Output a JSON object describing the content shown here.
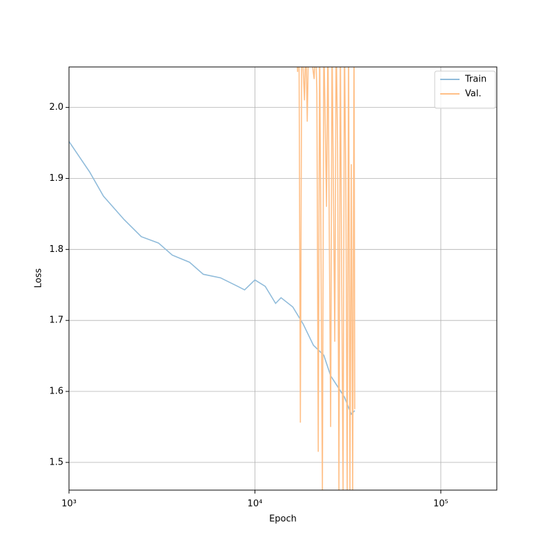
{
  "chart_data": {
    "type": "line",
    "xlabel": "Epoch",
    "ylabel": "Loss",
    "xscale": "log",
    "grid": true,
    "legend": "upper right",
    "xlim": [
      1000,
      200000
    ],
    "xticks": [
      {
        "value": 1000,
        "label": "10³"
      },
      {
        "value": 10000,
        "label": "10⁴"
      },
      {
        "value": 100000,
        "label": "10⁵"
      }
    ],
    "ylim": [
      1.461,
      2.057
    ],
    "yticks": [
      {
        "value": 1.5,
        "label": "1.5"
      },
      {
        "value": 1.6,
        "label": "1.6"
      },
      {
        "value": 1.7,
        "label": "1.7"
      },
      {
        "value": 1.8,
        "label": "1.8"
      },
      {
        "value": 1.9,
        "label": "1.9"
      },
      {
        "value": 2.0,
        "label": "2.0"
      }
    ],
    "series": [
      {
        "name": "Train",
        "color": "#8fbbda",
        "x": [
          1000,
          1292,
          1532,
          1979,
          2448,
          3030,
          3594,
          4448,
          5275,
          6527,
          8080,
          8800,
          10000,
          11360,
          12920,
          13820,
          15980,
          18170,
          20640,
          23470,
          25550,
          27830,
          30300,
          33000,
          34440
        ],
        "values": [
          1.952,
          1.909,
          1.875,
          1.842,
          1.818,
          1.809,
          1.792,
          1.782,
          1.765,
          1.76,
          1.748,
          1.743,
          1.757,
          1.748,
          1.724,
          1.732,
          1.719,
          1.695,
          1.665,
          1.651,
          1.622,
          1.607,
          1.592,
          1.568,
          1.573
        ]
      },
      {
        "name": "Val.",
        "color": "#ffbf86",
        "x": [
          16680,
          16970,
          17260,
          17560,
          17860,
          18480,
          18800,
          19120,
          19450,
          20830,
          21180,
          21540,
          21910,
          22290,
          23070,
          23470,
          24280,
          24700,
          25550,
          25990,
          26890,
          27350,
          27830,
          28310,
          28800,
          29300,
          29800,
          30300,
          30830,
          31360,
          31900,
          32450,
          33000,
          33570,
          34140,
          34440
        ],
        "values": [
          2.1,
          2.05,
          2.1,
          1.556,
          2.1,
          2.01,
          2.1,
          1.98,
          2.1,
          2.04,
          2.1,
          2.02,
          1.515,
          2.1,
          1.46,
          2.1,
          1.86,
          2.1,
          1.55,
          2.1,
          1.67,
          2.1,
          1.95,
          1.46,
          2.1,
          1.75,
          1.46,
          2.1,
          1.89,
          1.46,
          2.1,
          1.46,
          1.92,
          1.46,
          2.1,
          1.575
        ]
      }
    ]
  }
}
